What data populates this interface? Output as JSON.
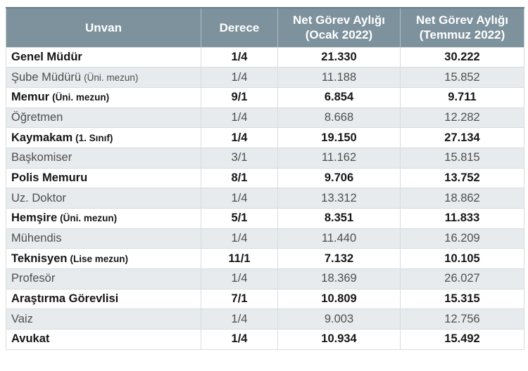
{
  "colors": {
    "header_bg": "#7d929d",
    "header_text": "#ffffff",
    "header_top_border": "#697b86",
    "stripe_bg": "#e7ebee",
    "row_bg": "#ffffff",
    "bold_text": "#161616",
    "normal_text": "#4e4e4e",
    "grid_line": "#d6dcdf",
    "outer_border": "#c6cdd1"
  },
  "table": {
    "columns": [
      {
        "label": "Unvan",
        "sublabel": ""
      },
      {
        "label": "Derece",
        "sublabel": ""
      },
      {
        "label": "Net Görev Aylığı",
        "sublabel": "(Ocak 2022)"
      },
      {
        "label": "Net Görev Aylığı",
        "sublabel": "(Temmuz 2022)"
      }
    ],
    "rows": [
      {
        "title": "Genel Müdür",
        "note": "",
        "derece": "1/4",
        "ocak": "21.330",
        "temmuz": "30.222",
        "bold": true
      },
      {
        "title": "Şube Müdürü",
        "note": "(Üni. mezun)",
        "derece": "1/4",
        "ocak": "11.188",
        "temmuz": "15.852",
        "bold": false
      },
      {
        "title": "Memur",
        "note": "(Üni. mezun)",
        "derece": "9/1",
        "ocak": "6.854",
        "temmuz": "9.711",
        "bold": true
      },
      {
        "title": "Öğretmen",
        "note": "",
        "derece": "1/4",
        "ocak": "8.668",
        "temmuz": "12.282",
        "bold": false
      },
      {
        "title": "Kaymakam",
        "note": "(1. Sınıf)",
        "derece": "1/4",
        "ocak": "19.150",
        "temmuz": "27.134",
        "bold": true
      },
      {
        "title": "Başkomiser",
        "note": "",
        "derece": "3/1",
        "ocak": "11.162",
        "temmuz": "15.815",
        "bold": false
      },
      {
        "title": "Polis Memuru",
        "note": "",
        "derece": "8/1",
        "ocak": "9.706",
        "temmuz": "13.752",
        "bold": true
      },
      {
        "title": "Uz. Doktor",
        "note": "",
        "derece": "1/4",
        "ocak": "13.312",
        "temmuz": "18.862",
        "bold": false
      },
      {
        "title": "Hemşire",
        "note": "(Üni. mezun)",
        "derece": "5/1",
        "ocak": "8.351",
        "temmuz": "11.833",
        "bold": true
      },
      {
        "title": "Mühendis",
        "note": "",
        "derece": "1/4",
        "ocak": "11.440",
        "temmuz": "16.209",
        "bold": false
      },
      {
        "title": "Teknisyen",
        "note": "(Lise mezun)",
        "derece": "11/1",
        "ocak": "7.132",
        "temmuz": "10.105",
        "bold": true
      },
      {
        "title": "Profesör",
        "note": "",
        "derece": "1/4",
        "ocak": "18.369",
        "temmuz": "26.027",
        "bold": false
      },
      {
        "title": "Araştırma Görevlisi",
        "note": "",
        "derece": "7/1",
        "ocak": "10.809",
        "temmuz": "15.315",
        "bold": true
      },
      {
        "title": "Vaiz",
        "note": "",
        "derece": "1/4",
        "ocak": "9.003",
        "temmuz": "12.756",
        "bold": false
      },
      {
        "title": "Avukat",
        "note": "",
        "derece": "1/4",
        "ocak": "10.934",
        "temmuz": "15.492",
        "bold": true
      }
    ]
  },
  "chart_data": {
    "type": "table",
    "columns": [
      "Unvan",
      "Derece",
      "Net Görev Aylığı (Ocak 2022)",
      "Net Görev Aylığı (Temmuz 2022)"
    ],
    "rows": [
      [
        "Genel Müdür",
        "1/4",
        "21.330",
        "30.222"
      ],
      [
        "Şube Müdürü (Üni. mezun)",
        "1/4",
        "11.188",
        "15.852"
      ],
      [
        "Memur (Üni. mezun)",
        "9/1",
        "6.854",
        "9.711"
      ],
      [
        "Öğretmen",
        "1/4",
        "8.668",
        "12.282"
      ],
      [
        "Kaymakam (1. Sınıf)",
        "1/4",
        "19.150",
        "27.134"
      ],
      [
        "Başkomiser",
        "3/1",
        "11.162",
        "15.815"
      ],
      [
        "Polis Memuru",
        "8/1",
        "9.706",
        "13.752"
      ],
      [
        "Uz. Doktor",
        "1/4",
        "13.312",
        "18.862"
      ],
      [
        "Hemşire (Üni. mezun)",
        "5/1",
        "8.351",
        "11.833"
      ],
      [
        "Mühendis",
        "1/4",
        "11.440",
        "16.209"
      ],
      [
        "Teknisyen (Lise mezun)",
        "11/1",
        "7.132",
        "10.105"
      ],
      [
        "Profesör",
        "1/4",
        "18.369",
        "26.027"
      ],
      [
        "Araştırma Görevlisi",
        "7/1",
        "10.809",
        "15.315"
      ],
      [
        "Vaiz",
        "1/4",
        "9.003",
        "12.756"
      ],
      [
        "Avukat",
        "1/4",
        "10.934",
        "15.492"
      ]
    ]
  }
}
